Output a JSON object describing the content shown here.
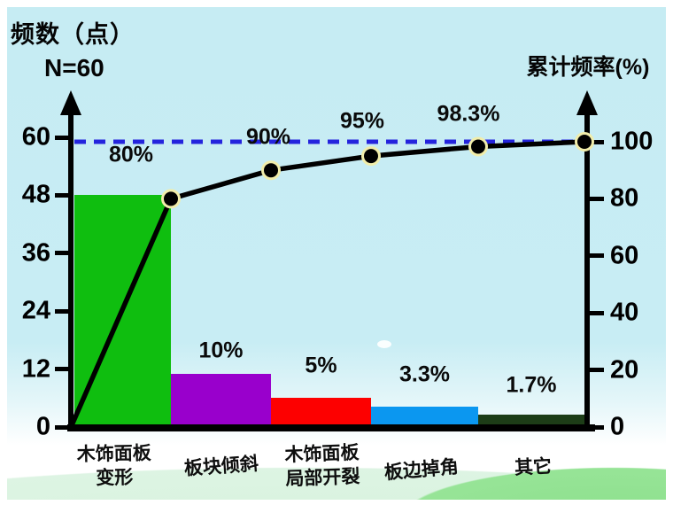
{
  "page": {
    "left_axis_title": "频数（点）",
    "sample_label": "N=60",
    "right_axis_title": "累计频率(%)"
  },
  "chart_data": {
    "type": "bar",
    "subtype": "pareto",
    "title": "",
    "n_total": 60,
    "n_label": "N=60",
    "left_axis": {
      "title": "频数（点）",
      "ticks": [
        0,
        12,
        24,
        36,
        48,
        60
      ],
      "range": [
        0,
        60
      ]
    },
    "right_axis": {
      "title": "累计频率(%)",
      "ticks": [
        0,
        20,
        40,
        60,
        80,
        100
      ],
      "range": [
        0,
        100
      ]
    },
    "categories": [
      "木饰面板变形",
      "板块倾斜",
      "木饰面板局部开裂",
      "板边掉角",
      "其它"
    ],
    "category_display": [
      "木饰面板\n变形",
      "板块倾斜",
      "木饰面板\n局部开裂",
      "板边掉角",
      "其它"
    ],
    "frequencies": [
      48,
      6,
      3,
      2,
      1
    ],
    "percents": [
      80,
      10,
      5,
      3.3,
      1.7
    ],
    "bar_percent_labels": [
      "10%",
      "5%",
      "3.3%",
      "1.7%"
    ],
    "bar_display_points": [
      48,
      11,
      6,
      4.2,
      2.6
    ],
    "bar_colors": [
      "#0fbe0f",
      "#9900cc",
      "#fd0000",
      "#0b97f0",
      "#1d3d17"
    ],
    "cumulative_percents": [
      80,
      90,
      95,
      98.3,
      100
    ],
    "cumulative_labels": [
      "80%",
      "90%",
      "95%",
      "98.3%"
    ],
    "reference_line": {
      "value": 100,
      "style": "dashed",
      "color": "#2424dd"
    },
    "line_color": "#000000",
    "marker_fill": "#000000",
    "marker_ring": "#f1edaa",
    "legend": "none",
    "grid": "off"
  }
}
